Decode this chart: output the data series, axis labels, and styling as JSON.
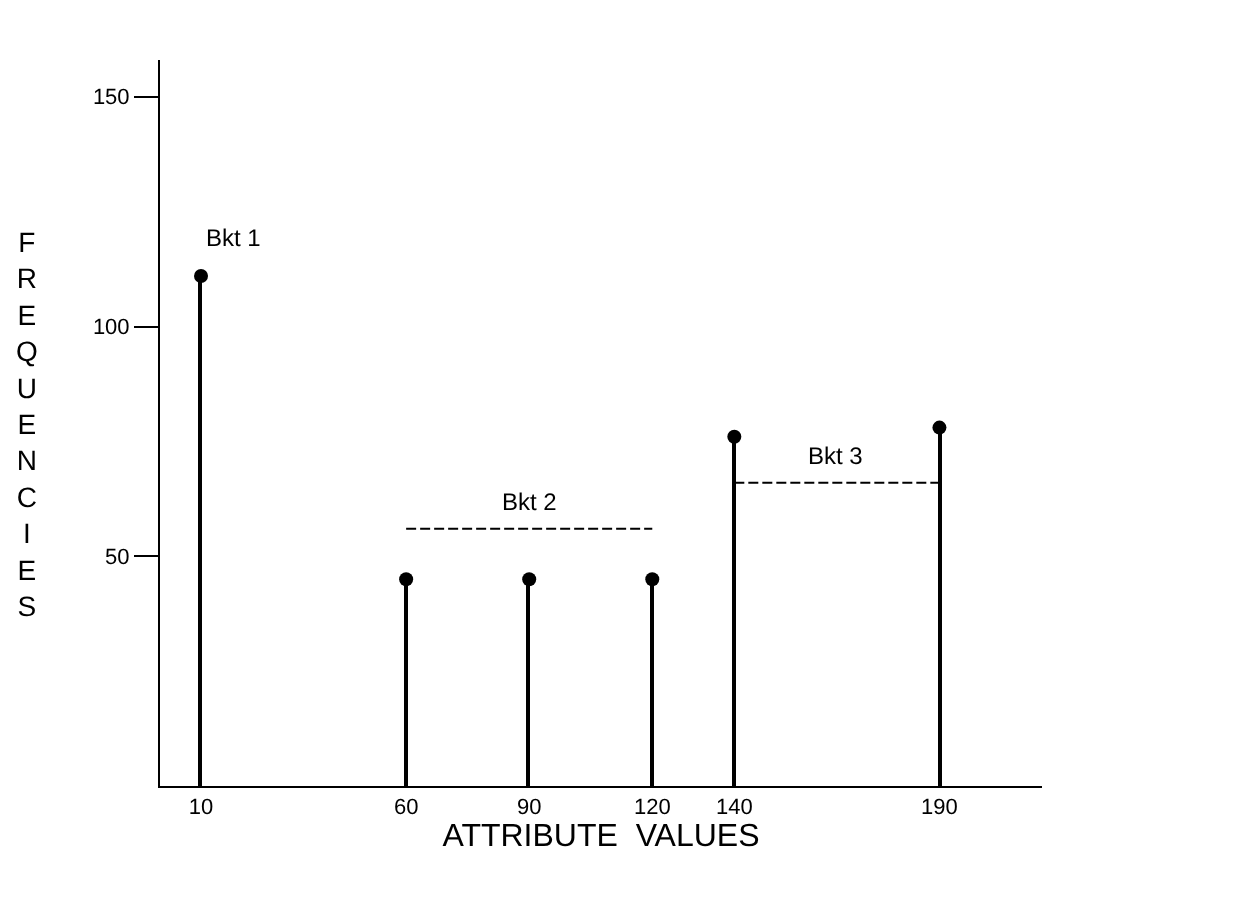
{
  "chart_data": {
    "type": "lollipop",
    "xlabel": "ATTRIBUTE  VALUES",
    "ylabel": "FREQUENCIES",
    "x": [
      10,
      60,
      90,
      120,
      140,
      190
    ],
    "series": [
      {
        "color": "#000000",
        "values": [
          111,
          45,
          45,
          45,
          76,
          78
        ]
      },
      {
        "type": "line",
        "x": [
          60,
          120
        ],
        "values": [
          56,
          56
        ],
        "color": "#000000",
        "line_style": "dashed",
        "marker": "none"
      },
      {
        "type": "line",
        "x": [
          140,
          190
        ],
        "values": [
          66,
          66
        ],
        "color": "#000000",
        "line_style": "dashed",
        "marker": "none"
      }
    ],
    "annotations": [
      "Bkt 1",
      "Bkt 2",
      "Bkt 3"
    ],
    "xlim": [
      0,
      215
    ],
    "ylim": [
      0,
      158
    ],
    "xticks": [
      10,
      60,
      90,
      120,
      140,
      190
    ],
    "yticks": [
      50,
      100,
      150
    ],
    "marker": "circle"
  }
}
